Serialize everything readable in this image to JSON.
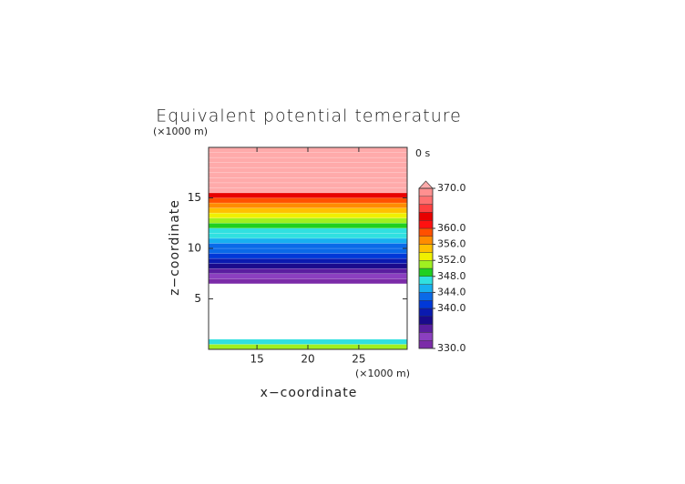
{
  "chart_data": {
    "type": "heatmap",
    "title": "Equivalent potential temerature",
    "x_label": "x−coordinate",
    "y_label": "z−coordinate",
    "x_unit": "(×1000 m)",
    "y_unit": "(×1000 m)",
    "time_label": "0 s",
    "xlim": [
      10.25,
      29.75
    ],
    "ylim": [
      0,
      20
    ],
    "xticks": [
      15,
      20,
      25
    ],
    "yticks": [
      5,
      10,
      15
    ],
    "ybins": [
      0,
      0.5,
      1,
      1.5,
      2,
      2.5,
      3,
      3.5,
      4,
      4.5,
      5,
      5.5,
      6,
      6.5,
      7,
      7.5,
      8,
      8.5,
      9,
      9.5,
      10,
      10.5,
      11,
      11.5,
      12,
      12.5,
      13,
      13.5,
      14,
      14.5,
      15,
      15.5,
      16,
      16.5,
      17,
      17.5,
      18,
      18.5,
      19,
      19.5,
      20
    ],
    "values": [
      351,
      347,
      null,
      null,
      null,
      null,
      null,
      null,
      null,
      null,
      null,
      null,
      null,
      331,
      333,
      335,
      337,
      339,
      341,
      342,
      343,
      345,
      346,
      347,
      349,
      351,
      353,
      355,
      357,
      359,
      362,
      372,
      372,
      372,
      372,
      372,
      372,
      372,
      372,
      372
    ],
    "colorbar": {
      "levels": [
        330,
        332,
        334,
        336,
        338,
        340,
        342,
        344,
        346,
        348,
        350,
        352,
        354,
        356,
        358,
        360,
        362,
        364,
        366,
        368,
        370
      ],
      "colors": [
        "#7b2ba8",
        "#8b3fc0",
        "#5a1ea0",
        "#1a0a8c",
        "#0a1ab0",
        "#0038d8",
        "#0a6ae8",
        "#18b0f0",
        "#30e0e0",
        "#20d020",
        "#a0f020",
        "#f0f000",
        "#ffc000",
        "#ff8c00",
        "#ff5000",
        "#ff1010",
        "#e80000",
        "#ff4040",
        "#ff7070",
        "#ff9090"
      ],
      "over_color": "#ffaaaa",
      "ticks": [
        {
          "value": 330,
          "label": "330.0"
        },
        {
          "value": 340,
          "label": "340.0"
        },
        {
          "value": 344,
          "label": "344.0"
        },
        {
          "value": 348,
          "label": "348.0"
        },
        {
          "value": 352,
          "label": "352.0"
        },
        {
          "value": 356,
          "label": "356.0"
        },
        {
          "value": 360,
          "label": "360.0"
        },
        {
          "value": 370,
          "label": "370.0"
        }
      ]
    }
  }
}
